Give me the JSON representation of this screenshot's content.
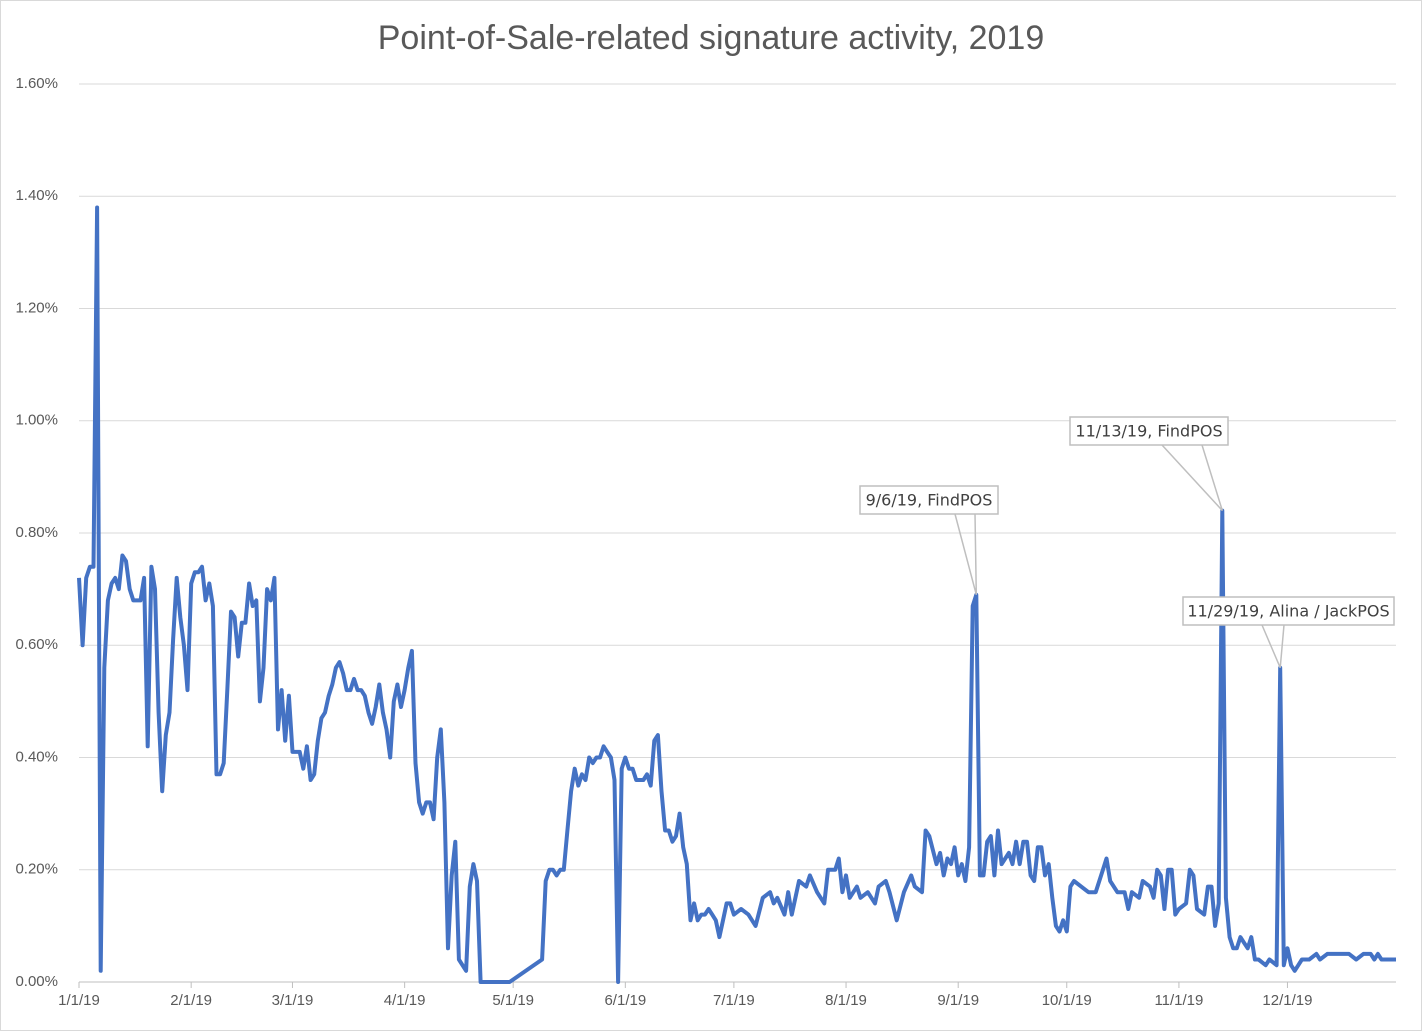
{
  "chart_data": {
    "type": "line",
    "title": "Point-of-Sale-related signature activity, 2019",
    "color": "#4472c4",
    "grid": true,
    "x": [
      "1/1/19",
      "1/2/19",
      "1/3/19",
      "1/4/19",
      "1/5/19",
      "1/6/19",
      "1/7/19",
      "1/8/19",
      "1/9/19",
      "1/10/19",
      "1/11/19",
      "1/12/19",
      "1/13/19",
      "1/14/19",
      "1/15/19",
      "1/16/19",
      "1/17/19",
      "1/18/19",
      "1/19/19",
      "1/20/19",
      "1/21/19",
      "1/22/19",
      "1/23/19",
      "1/24/19",
      "1/25/19",
      "1/26/19",
      "1/27/19",
      "1/28/19",
      "1/29/19",
      "1/30/19",
      "1/31/19",
      "2/1/19",
      "2/2/19",
      "2/3/19",
      "2/4/19",
      "2/5/19",
      "2/6/19",
      "2/7/19",
      "2/8/19",
      "2/9/19",
      "2/10/19",
      "2/11/19",
      "2/12/19",
      "2/13/19",
      "2/14/19",
      "2/15/19",
      "2/16/19",
      "2/17/19",
      "2/18/19",
      "2/19/19",
      "2/20/19",
      "2/21/19",
      "2/22/19",
      "2/23/19",
      "2/24/19",
      "2/25/19",
      "2/26/19",
      "2/27/19",
      "2/28/19",
      "3/1/19",
      "3/2/19",
      "3/3/19",
      "3/4/19",
      "3/5/19",
      "3/6/19",
      "3/7/19",
      "3/8/19",
      "3/9/19",
      "3/10/19",
      "3/11/19",
      "3/12/19",
      "3/13/19",
      "3/14/19",
      "3/15/19",
      "3/16/19",
      "3/17/19",
      "3/18/19",
      "3/19/19",
      "3/20/19",
      "3/21/19",
      "3/22/19",
      "3/23/19",
      "3/24/19",
      "3/25/19",
      "3/26/19",
      "3/27/19",
      "3/28/19",
      "3/29/19",
      "3/30/19",
      "3/31/19",
      "4/1/19",
      "4/2/19",
      "4/3/19",
      "4/4/19",
      "4/5/19",
      "4/6/19",
      "4/7/19",
      "4/8/19",
      "4/9/19",
      "4/10/19",
      "4/11/19",
      "4/12/19",
      "4/13/19",
      "4/14/19",
      "4/15/19",
      "4/16/19",
      "4/17/19",
      "4/18/19",
      "4/19/19",
      "4/20/19",
      "4/21/19",
      "4/22/19",
      "4/23/19",
      "4/24/19",
      "4/25/19",
      "4/26/19",
      "4/27/19",
      "4/28/19",
      "4/29/19",
      "4/30/19",
      "5/9/19",
      "5/10/19",
      "5/11/19",
      "5/12/19",
      "5/13/19",
      "5/14/19",
      "5/15/19",
      "5/16/19",
      "5/17/19",
      "5/18/19",
      "5/19/19",
      "5/20/19",
      "5/21/19",
      "5/22/19",
      "5/23/19",
      "5/24/19",
      "5/25/19",
      "5/26/19",
      "5/27/19",
      "5/28/19",
      "5/29/19",
      "5/30/19",
      "5/31/19",
      "6/1/19",
      "6/2/19",
      "6/3/19",
      "6/4/19",
      "6/5/19",
      "6/6/19",
      "6/7/19",
      "6/8/19",
      "6/9/19",
      "6/10/19",
      "6/11/19",
      "6/12/19",
      "6/13/19",
      "6/14/19",
      "6/15/19",
      "6/16/19",
      "6/17/19",
      "6/18/19",
      "6/19/19",
      "6/20/19",
      "6/21/19",
      "6/22/19",
      "6/23/19",
      "6/24/19",
      "6/25/19",
      "6/26/19",
      "6/27/19",
      "6/28/19",
      "6/29/19",
      "6/30/19",
      "7/1/19",
      "7/3/19",
      "7/5/19",
      "7/7/19",
      "7/9/19",
      "7/11/19",
      "7/12/19",
      "7/13/19",
      "7/15/19",
      "7/16/19",
      "7/17/19",
      "7/19/19",
      "7/21/19",
      "7/22/19",
      "7/24/19",
      "7/26/19",
      "7/27/19",
      "7/29/19",
      "7/30/19",
      "7/31/19",
      "8/1/19",
      "8/2/19",
      "8/4/19",
      "8/5/19",
      "8/7/19",
      "8/9/19",
      "8/10/19",
      "8/12/19",
      "8/13/19",
      "8/15/19",
      "8/17/19",
      "8/19/19",
      "8/20/19",
      "8/22/19",
      "8/23/19",
      "8/24/19",
      "8/26/19",
      "8/27/19",
      "8/28/19",
      "8/29/19",
      "8/30/19",
      "8/31/19",
      "9/1/19",
      "9/2/19",
      "9/3/19",
      "9/4/19",
      "9/5/19",
      "9/6/19",
      "9/7/19",
      "9/8/19",
      "9/9/19",
      "9/10/19",
      "9/11/19",
      "9/12/19",
      "9/13/19",
      "9/15/19",
      "9/16/19",
      "9/17/19",
      "9/18/19",
      "9/19/19",
      "9/20/19",
      "9/21/19",
      "9/22/19",
      "9/23/19",
      "9/24/19",
      "9/25/19",
      "9/26/19",
      "9/27/19",
      "9/28/19",
      "9/29/19",
      "9/30/19",
      "10/1/19",
      "10/2/19",
      "10/3/19",
      "10/5/19",
      "10/7/19",
      "10/9/19",
      "10/11/19",
      "10/12/19",
      "10/13/19",
      "10/15/19",
      "10/17/19",
      "10/18/19",
      "10/19/19",
      "10/21/19",
      "10/22/19",
      "10/24/19",
      "10/25/19",
      "10/26/19",
      "10/27/19",
      "10/28/19",
      "10/29/19",
      "10/30/19",
      "10/31/19",
      "11/1/19",
      "11/3/19",
      "11/4/19",
      "11/5/19",
      "11/6/19",
      "11/8/19",
      "11/9/19",
      "11/10/19",
      "11/11/19",
      "11/12/19",
      "11/13/19",
      "11/14/19",
      "11/15/19",
      "11/16/19",
      "11/17/19",
      "11/18/19",
      "11/19/19",
      "11/20/19",
      "11/21/19",
      "11/22/19",
      "11/23/19",
      "11/25/19",
      "11/26/19",
      "11/28/19",
      "11/29/19",
      "11/30/19",
      "12/1/19",
      "12/2/19",
      "12/3/19",
      "12/4/19",
      "12/5/19",
      "12/7/19",
      "12/9/19",
      "12/10/19",
      "12/12/19",
      "12/14/19",
      "12/16/19",
      "12/18/19",
      "12/20/19",
      "12/22/19",
      "12/24/19",
      "12/25/19",
      "12/26/19",
      "12/27/19",
      "12/28/19",
      "12/30/19",
      "12/31/19"
    ],
    "values": [
      0.72,
      0.6,
      0.72,
      0.74,
      0.74,
      1.38,
      0.02,
      0.56,
      0.68,
      0.71,
      0.72,
      0.7,
      0.76,
      0.75,
      0.7,
      0.68,
      0.68,
      0.68,
      0.72,
      0.42,
      0.74,
      0.7,
      0.48,
      0.34,
      0.44,
      0.48,
      0.61,
      0.72,
      0.65,
      0.6,
      0.52,
      0.71,
      0.73,
      0.73,
      0.74,
      0.68,
      0.71,
      0.67,
      0.37,
      0.37,
      0.39,
      0.52,
      0.66,
      0.65,
      0.58,
      0.64,
      0.64,
      0.71,
      0.67,
      0.68,
      0.5,
      0.56,
      0.7,
      0.68,
      0.72,
      0.45,
      0.52,
      0.43,
      0.51,
      0.41,
      0.41,
      0.41,
      0.38,
      0.42,
      0.36,
      0.37,
      0.43,
      0.47,
      0.48,
      0.51,
      0.53,
      0.56,
      0.57,
      0.55,
      0.52,
      0.52,
      0.54,
      0.52,
      0.52,
      0.51,
      0.48,
      0.46,
      0.49,
      0.53,
      0.48,
      0.45,
      0.4,
      0.5,
      0.53,
      0.49,
      0.52,
      0.56,
      0.59,
      0.39,
      0.32,
      0.3,
      0.32,
      0.32,
      0.29,
      0.4,
      0.45,
      0.32,
      0.06,
      0.19,
      0.25,
      0.04,
      0.03,
      0.02,
      0.17,
      0.21,
      0.18,
      0.0,
      0.0,
      0.0,
      0.0,
      0.0,
      0.0,
      0.0,
      0.0,
      0.0,
      0.04,
      0.18,
      0.2,
      0.2,
      0.19,
      0.2,
      0.2,
      0.27,
      0.34,
      0.38,
      0.35,
      0.37,
      0.36,
      0.4,
      0.39,
      0.4,
      0.4,
      0.42,
      0.41,
      0.4,
      0.36,
      0.0,
      0.38,
      0.4,
      0.38,
      0.38,
      0.36,
      0.36,
      0.36,
      0.37,
      0.35,
      0.43,
      0.44,
      0.34,
      0.27,
      0.27,
      0.25,
      0.26,
      0.3,
      0.24,
      0.21,
      0.11,
      0.14,
      0.11,
      0.12,
      0.12,
      0.13,
      0.12,
      0.11,
      0.08,
      0.11,
      0.14,
      0.14,
      0.12,
      0.13,
      0.12,
      0.1,
      0.15,
      0.16,
      0.14,
      0.15,
      0.12,
      0.16,
      0.12,
      0.18,
      0.17,
      0.19,
      0.16,
      0.14,
      0.2,
      0.2,
      0.22,
      0.16,
      0.19,
      0.15,
      0.17,
      0.15,
      0.16,
      0.14,
      0.17,
      0.18,
      0.16,
      0.11,
      0.16,
      0.19,
      0.17,
      0.16,
      0.27,
      0.26,
      0.21,
      0.23,
      0.19,
      0.22,
      0.21,
      0.24,
      0.19,
      0.21,
      0.18,
      0.24,
      0.67,
      0.69,
      0.19,
      0.19,
      0.25,
      0.26,
      0.19,
      0.27,
      0.21,
      0.23,
      0.21,
      0.25,
      0.21,
      0.25,
      0.25,
      0.19,
      0.18,
      0.24,
      0.24,
      0.19,
      0.21,
      0.15,
      0.1,
      0.09,
      0.11,
      0.09,
      0.17,
      0.18,
      0.17,
      0.16,
      0.16,
      0.2,
      0.22,
      0.18,
      0.16,
      0.16,
      0.13,
      0.16,
      0.15,
      0.18,
      0.17,
      0.15,
      0.2,
      0.19,
      0.13,
      0.2,
      0.2,
      0.12,
      0.13,
      0.14,
      0.2,
      0.19,
      0.13,
      0.12,
      0.17,
      0.17,
      0.1,
      0.14,
      0.84,
      0.15,
      0.08,
      0.06,
      0.06,
      0.08,
      0.07,
      0.06,
      0.08,
      0.04,
      0.04,
      0.03,
      0.04,
      0.03,
      0.56,
      0.03,
      0.06,
      0.03,
      0.02,
      0.03,
      0.04,
      0.04,
      0.05,
      0.04,
      0.05,
      0.05,
      0.05,
      0.05,
      0.04,
      0.05,
      0.05,
      0.04,
      0.05,
      0.04,
      0.04,
      0.04,
      0.04
    ],
    "xlim": [
      "1/1/19",
      "12/31/19"
    ],
    "xticks": [
      "1/1/19",
      "2/1/19",
      "3/1/19",
      "4/1/19",
      "5/1/19",
      "6/1/19",
      "7/1/19",
      "8/1/19",
      "9/1/19",
      "10/1/19",
      "11/1/19",
      "12/1/19"
    ],
    "ylim": [
      0,
      1.6
    ],
    "yticks": [
      {
        "value": 0,
        "label": "0.00%"
      },
      {
        "value": 0.2,
        "label": "0.20%"
      },
      {
        "value": 0.4,
        "label": "0.40%"
      },
      {
        "value": 0.6,
        "label": "0.60%"
      },
      {
        "value": 0.8,
        "label": "0.80%"
      },
      {
        "value": 1.0,
        "label": "1.00%"
      },
      {
        "value": 1.2,
        "label": "1.20%"
      },
      {
        "value": 1.4,
        "label": "1.40%"
      },
      {
        "value": 1.6,
        "label": "1.60%"
      }
    ],
    "annotations": [
      {
        "text": "9/6/19, FindPOS",
        "x": "9/6/19"
      },
      {
        "text": "11/13/19, FindPOS",
        "x": "11/13/19"
      },
      {
        "text": "11/29/19, Alina / JackPOS",
        "x": "11/29/19"
      }
    ]
  }
}
